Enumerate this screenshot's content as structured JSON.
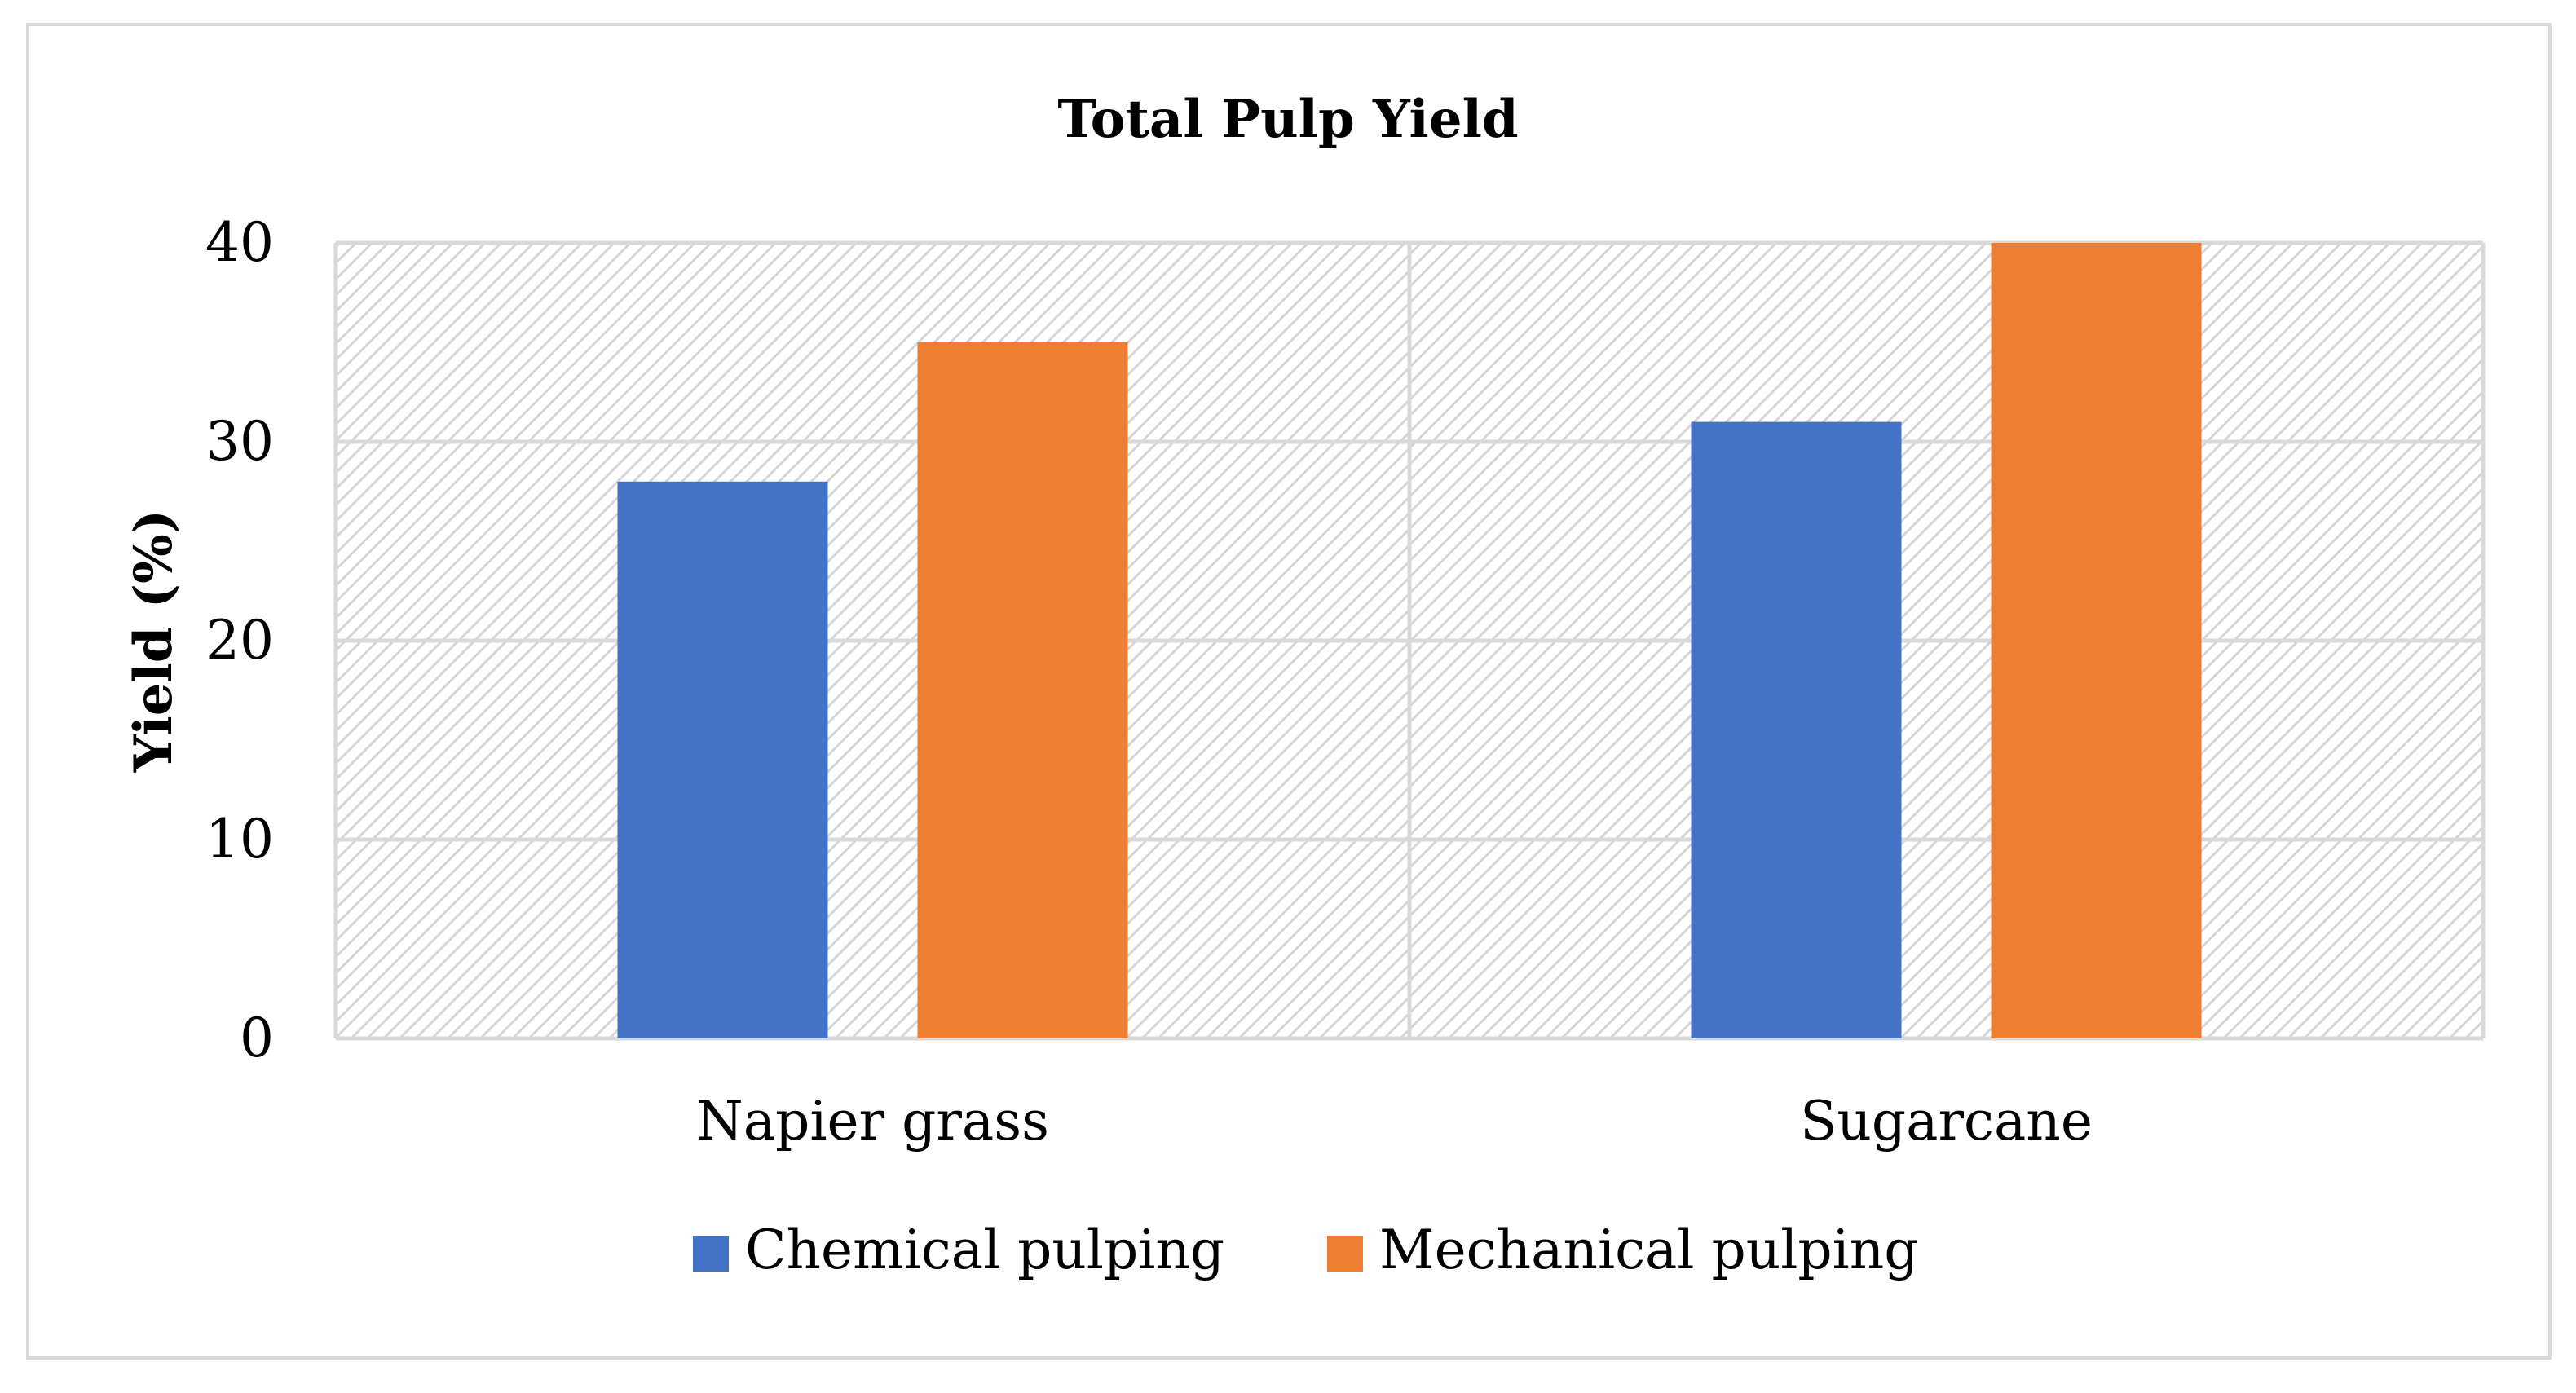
{
  "chart_data": {
    "type": "bar",
    "title": "Total Pulp Yield",
    "xlabel": "",
    "ylabel": "Yield (%)",
    "categories": [
      "Napier grass",
      "Sugarcane"
    ],
    "series": [
      {
        "name": "Chemical pulping",
        "color": "#4472C4",
        "values": [
          28,
          31
        ]
      },
      {
        "name": "Mechanical pulping",
        "color": "#ED7D31",
        "values": [
          35,
          40
        ]
      }
    ],
    "ylim": [
      0,
      40
    ],
    "yticks": [
      0,
      10,
      20,
      30,
      40
    ],
    "grid": true,
    "legend_position": "bottom"
  }
}
